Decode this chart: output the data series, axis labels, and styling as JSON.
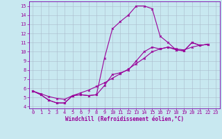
{
  "xlabel": "Windchill (Refroidissement éolien,°C)",
  "background_color": "#c8e8f0",
  "line_color": "#990099",
  "xlim": [
    -0.5,
    23.5
  ],
  "ylim": [
    3.8,
    15.5
  ],
  "xticks": [
    0,
    1,
    2,
    3,
    4,
    5,
    6,
    7,
    8,
    9,
    10,
    11,
    12,
    13,
    14,
    15,
    16,
    17,
    18,
    19,
    20,
    21,
    22,
    23
  ],
  "yticks": [
    4,
    5,
    6,
    7,
    8,
    9,
    10,
    11,
    12,
    13,
    14,
    15
  ],
  "curve1_x": [
    0,
    1,
    2,
    3,
    4,
    5,
    6,
    7,
    8,
    9,
    10,
    11,
    12,
    13,
    14,
    15,
    16,
    17,
    18,
    19,
    20,
    21,
    22
  ],
  "curve1_y": [
    5.7,
    5.3,
    4.7,
    4.4,
    4.4,
    5.2,
    5.3,
    5.2,
    5.3,
    9.3,
    12.5,
    13.3,
    14.0,
    15.0,
    15.0,
    14.7,
    11.7,
    11.0,
    10.2,
    10.1,
    11.0,
    10.7,
    10.8
  ],
  "curve2_x": [
    0,
    1,
    2,
    3,
    4,
    5,
    6,
    7,
    8,
    9,
    10,
    11,
    12,
    13,
    14,
    15,
    16,
    17,
    18,
    19,
    20,
    21,
    22
  ],
  "curve2_y": [
    5.7,
    5.3,
    4.7,
    4.4,
    4.4,
    5.2,
    5.3,
    5.2,
    5.3,
    6.3,
    7.5,
    7.7,
    8.0,
    9.0,
    10.0,
    10.5,
    10.3,
    10.5,
    10.2,
    10.1,
    11.0,
    10.7,
    10.8
  ],
  "curve3_x": [
    0,
    1,
    2,
    3,
    4,
    5,
    6,
    7,
    8,
    9,
    10,
    11,
    12,
    13,
    14,
    15,
    16,
    17,
    18,
    19,
    20,
    21,
    22
  ],
  "curve3_y": [
    5.7,
    5.4,
    5.1,
    4.9,
    4.8,
    5.2,
    5.5,
    5.8,
    6.2,
    6.6,
    7.1,
    7.6,
    8.1,
    8.7,
    9.3,
    10.0,
    10.3,
    10.5,
    10.3,
    10.2,
    10.5,
    10.7,
    10.8
  ],
  "grid_color": "#aabbcc",
  "tick_fontsize": 5.0,
  "xlabel_fontsize": 5.5,
  "spine_color": "#7700aa"
}
